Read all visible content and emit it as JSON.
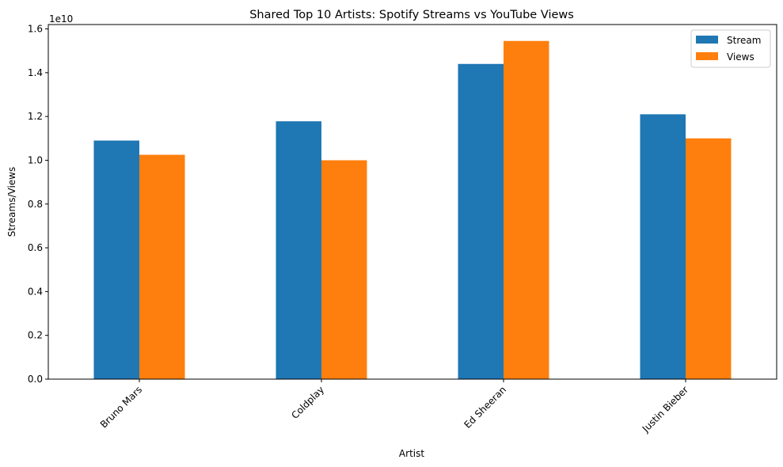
{
  "chart_data": {
    "type": "bar",
    "title": "Shared Top 10 Artists: Spotify Streams vs YouTube Views",
    "xlabel": "Artist",
    "ylabel": "Streams/Views",
    "offset_label": "1e10",
    "categories": [
      "Bruno Mars",
      "Coldplay",
      "Ed Sheeran",
      "Justin Bieber"
    ],
    "series": [
      {
        "name": "Stream",
        "color": "#1f77b4",
        "values": [
          10900000000,
          11780000000,
          14400000000,
          12100000000
        ]
      },
      {
        "name": "Views",
        "color": "#ff7f0e",
        "values": [
          10250000000,
          10000000000,
          15450000000,
          11000000000
        ]
      }
    ],
    "ylim": [
      0,
      16200000000
    ],
    "yticks": [
      0,
      2000000000,
      4000000000,
      6000000000,
      8000000000,
      10000000000,
      12000000000,
      14000000000,
      16000000000
    ],
    "ytick_labels": [
      "0.0",
      "0.2",
      "0.4",
      "0.6",
      "0.8",
      "1.0",
      "1.2",
      "1.4",
      "1.6"
    ],
    "grid": false,
    "legend_position": "top-right",
    "xtick_rotation": 45
  }
}
